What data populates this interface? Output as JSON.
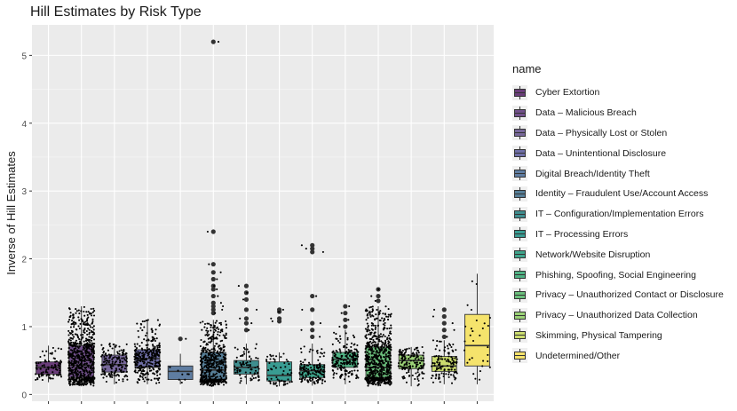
{
  "chart_data": {
    "type": "boxplot",
    "title": "Hill Estimates by Risk Type",
    "xlabel": "",
    "ylabel": "Inverse of Hill Estimates",
    "ylim": [
      -0.1,
      5.45
    ],
    "yticks": [
      0,
      1,
      2,
      3,
      4,
      5
    ],
    "grid": true,
    "legend_title": "name",
    "legend_position": "right",
    "series": [
      {
        "name": "Cyber Extortion",
        "color": "#6a3d7a",
        "q1": 0.3,
        "median": 0.4,
        "q3": 0.48,
        "whisker_low": 0.18,
        "whisker_high": 0.72,
        "n_points": 90,
        "outliers": []
      },
      {
        "name": "Data – Malicious Breach",
        "color": "#71508a",
        "q1": 0.25,
        "median": 0.43,
        "q3": 0.72,
        "whisker_low": 0.12,
        "whisker_high": 1.3,
        "n_points": 700,
        "outliers": []
      },
      {
        "name": "Data – Physically Lost or Stolen",
        "color": "#77679a",
        "q1": 0.33,
        "median": 0.44,
        "q3": 0.58,
        "whisker_low": 0.15,
        "whisker_high": 0.75,
        "n_points": 150,
        "outliers": []
      },
      {
        "name": "Data – Unintentional Disclosure",
        "color": "#6e6ea6",
        "q1": 0.4,
        "median": 0.53,
        "q3": 0.66,
        "whisker_low": 0.15,
        "whisker_high": 1.1,
        "n_points": 300,
        "outliers": []
      },
      {
        "name": "Digital Breach/Identity Theft",
        "color": "#5f7da1",
        "q1": 0.22,
        "median": 0.34,
        "q3": 0.42,
        "whisker_low": 0.15,
        "whisker_high": 0.6,
        "n_points": 8,
        "outliers": [
          0.82
        ]
      },
      {
        "name": "Identity – Fraudulent Use/Account Access",
        "color": "#567e97",
        "q1": 0.22,
        "median": 0.36,
        "q3": 0.62,
        "whisker_low": 0.12,
        "whisker_high": 1.1,
        "n_points": 500,
        "outliers": [
          1.2,
          1.25,
          1.3,
          1.35,
          1.45,
          1.55,
          1.6,
          1.7,
          1.8,
          1.92,
          2.4,
          5.2
        ]
      },
      {
        "name": "IT – Configuration/Implementation Errors",
        "color": "#3f8e8f",
        "q1": 0.3,
        "median": 0.4,
        "q3": 0.5,
        "whisker_low": 0.15,
        "whisker_high": 0.75,
        "n_points": 80,
        "outliers": [
          0.95,
          1.05,
          1.12,
          1.25,
          1.4,
          1.5,
          1.6
        ]
      },
      {
        "name": "IT – Processing Errors",
        "color": "#399c92",
        "q1": 0.2,
        "median": 0.28,
        "q3": 0.48,
        "whisker_low": 0.12,
        "whisker_high": 0.62,
        "n_points": 60,
        "outliers": [
          1.08,
          1.12,
          1.22,
          1.25
        ]
      },
      {
        "name": "Network/Website Disruption",
        "color": "#3fa58c",
        "q1": 0.25,
        "median": 0.35,
        "q3": 0.44,
        "whisker_low": 0.13,
        "whisker_high": 0.75,
        "n_points": 150,
        "outliers": [
          0.85,
          0.95,
          1.05,
          1.25,
          1.45,
          2.1,
          2.15,
          2.2
        ]
      },
      {
        "name": "Phishing, Spoofing, Social Engineering",
        "color": "#4fb284",
        "q1": 0.4,
        "median": 0.52,
        "q3": 0.62,
        "whisker_low": 0.15,
        "whisker_high": 0.95,
        "n_points": 200,
        "outliers": [
          1.0,
          1.1,
          1.2,
          1.3
        ]
      },
      {
        "name": "Privacy – Unauthorized Contact or Disclosure",
        "color": "#6bbf7c",
        "q1": 0.25,
        "median": 0.4,
        "q3": 0.7,
        "whisker_low": 0.12,
        "whisker_high": 1.3,
        "n_points": 700,
        "outliers": [
          1.38,
          1.45,
          1.55
        ]
      },
      {
        "name": "Privacy – Unauthorized Data Collection",
        "color": "#9bd277",
        "q1": 0.38,
        "median": 0.5,
        "q3": 0.58,
        "whisker_low": 0.12,
        "whisker_high": 0.7,
        "n_points": 140,
        "outliers": []
      },
      {
        "name": "Skimming, Physical Tampering",
        "color": "#cbdc6e",
        "q1": 0.34,
        "median": 0.42,
        "q3": 0.56,
        "whisker_low": 0.15,
        "whisker_high": 0.8,
        "n_points": 120,
        "outliers": [
          0.85,
          0.95,
          1.05,
          1.15,
          1.25
        ]
      },
      {
        "name": "Undetermined/Other",
        "color": "#f5e36c",
        "q1": 0.42,
        "median": 0.72,
        "q3": 1.18,
        "whisker_low": 0.15,
        "whisker_high": 1.78,
        "n_points": 30,
        "outliers": []
      }
    ]
  }
}
